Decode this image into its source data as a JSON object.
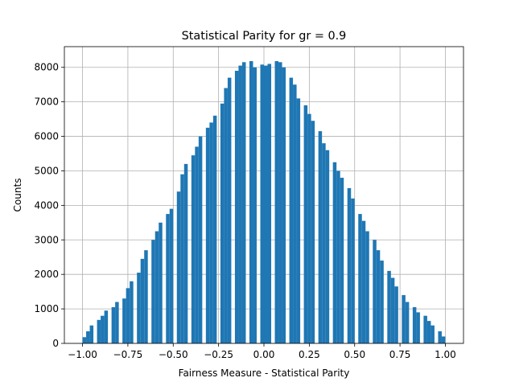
{
  "chart_data": {
    "type": "bar",
    "title": "Statistical Parity for gr = 0.9",
    "xlabel": "Fairness Measure - Statistical Parity",
    "ylabel": "Counts",
    "xlim": [
      -1.1,
      1.1
    ],
    "ylim": [
      0,
      8600
    ],
    "grid": true,
    "bar_color": "#1f77b4",
    "bin_width": 0.02,
    "x": [
      -0.99,
      -0.97,
      -0.95,
      -0.93,
      -0.91,
      -0.89,
      -0.87,
      -0.85,
      -0.83,
      -0.81,
      -0.79,
      -0.77,
      -0.75,
      -0.73,
      -0.71,
      -0.69,
      -0.67,
      -0.65,
      -0.63,
      -0.61,
      -0.59,
      -0.57,
      -0.55,
      -0.53,
      -0.51,
      -0.49,
      -0.47,
      -0.45,
      -0.43,
      -0.41,
      -0.39,
      -0.37,
      -0.35,
      -0.33,
      -0.31,
      -0.29,
      -0.27,
      -0.25,
      -0.23,
      -0.21,
      -0.19,
      -0.17,
      -0.15,
      -0.13,
      -0.11,
      -0.09,
      -0.07,
      -0.05,
      -0.03,
      -0.01,
      0.01,
      0.03,
      0.05,
      0.07,
      0.09,
      0.11,
      0.13,
      0.15,
      0.17,
      0.19,
      0.21,
      0.23,
      0.25,
      0.27,
      0.29,
      0.31,
      0.33,
      0.35,
      0.37,
      0.39,
      0.41,
      0.43,
      0.45,
      0.47,
      0.49,
      0.51,
      0.53,
      0.55,
      0.57,
      0.59,
      0.61,
      0.63,
      0.65,
      0.67,
      0.69,
      0.71,
      0.73,
      0.75,
      0.77,
      0.79,
      0.81,
      0.83,
      0.85,
      0.87,
      0.89,
      0.91,
      0.93,
      0.95,
      0.97,
      0.99
    ],
    "values": [
      180,
      350,
      520,
      0,
      680,
      800,
      950,
      0,
      1050,
      1200,
      0,
      1300,
      1600,
      1800,
      0,
      2050,
      2450,
      2700,
      0,
      3000,
      3250,
      3500,
      0,
      3750,
      3900,
      0,
      4400,
      4900,
      5200,
      0,
      5450,
      5700,
      6000,
      0,
      6250,
      6400,
      6600,
      0,
      6950,
      7400,
      7700,
      0,
      7900,
      8050,
      8150,
      0,
      8180,
      8000,
      0,
      8080,
      8050,
      8100,
      0,
      8180,
      8150,
      8000,
      0,
      7700,
      7500,
      7100,
      0,
      6900,
      6650,
      6450,
      0,
      6150,
      5800,
      5600,
      0,
      5250,
      5000,
      4800,
      0,
      4500,
      4200,
      0,
      3750,
      3550,
      3250,
      0,
      3000,
      2700,
      2400,
      0,
      2100,
      1900,
      1650,
      0,
      1400,
      1200,
      0,
      1050,
      900,
      0,
      800,
      650,
      520,
      0,
      350,
      200
    ],
    "xticks": [
      -1.0,
      -0.75,
      -0.5,
      -0.25,
      0.0,
      0.25,
      0.5,
      0.75,
      1.0
    ],
    "xtick_labels": [
      "−1.00",
      "−0.75",
      "−0.50",
      "−0.25",
      "0.00",
      "0.25",
      "0.50",
      "0.75",
      "1.00"
    ],
    "yticks": [
      0,
      1000,
      2000,
      3000,
      4000,
      5000,
      6000,
      7000,
      8000
    ],
    "ytick_labels": [
      "0",
      "1000",
      "2000",
      "3000",
      "4000",
      "5000",
      "6000",
      "7000",
      "8000"
    ]
  }
}
